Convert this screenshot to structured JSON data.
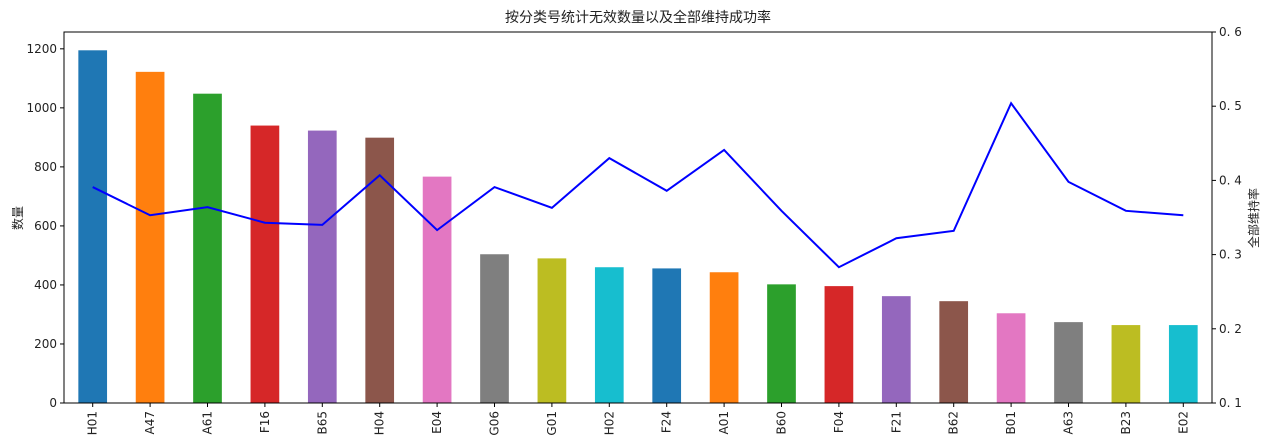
{
  "chart_data": {
    "type": "bar",
    "title": "按分类号统计无效数量以及全部维持成功率",
    "xlabel": "",
    "ylabel": "数量",
    "y2label": "全部维持率",
    "ylim": [
      0,
      1257
    ],
    "y2lim": [
      0.1,
      0.6
    ],
    "yticks": [
      0,
      200,
      400,
      600,
      800,
      1000,
      1200
    ],
    "y2ticks": [
      "0.1",
      "0.2",
      "0.3",
      "0.4",
      "0.5",
      "0.6"
    ],
    "grid": false,
    "categories": [
      "H01",
      "A47",
      "A61",
      "F16",
      "B65",
      "H04",
      "E04",
      "G06",
      "G01",
      "H02",
      "F24",
      "A01",
      "B60",
      "F04",
      "F21",
      "B62",
      "B01",
      "A63",
      "B23",
      "E02"
    ],
    "series": [
      {
        "type": "bar",
        "axis": "left",
        "values": [
          1195,
          1122,
          1048,
          940,
          923,
          899,
          767,
          504,
          490,
          460,
          456,
          443,
          402,
          396,
          362,
          345,
          304,
          274,
          264,
          264
        ]
      },
      {
        "type": "line",
        "axis": "right",
        "color": "#0000ff",
        "values": [
          0.391,
          0.353,
          0.364,
          0.343,
          0.34,
          0.407,
          0.333,
          0.391,
          0.363,
          0.43,
          0.386,
          0.441,
          0.359,
          0.283,
          0.322,
          0.332,
          0.504,
          0.398,
          0.359,
          0.353
        ]
      }
    ],
    "bar_colors": [
      "#1f77b4",
      "#ff7f0e",
      "#2ca02c",
      "#d62728",
      "#9467bd",
      "#8c564b",
      "#e377c2",
      "#7f7f7f",
      "#bcbd22",
      "#17becf"
    ]
  }
}
